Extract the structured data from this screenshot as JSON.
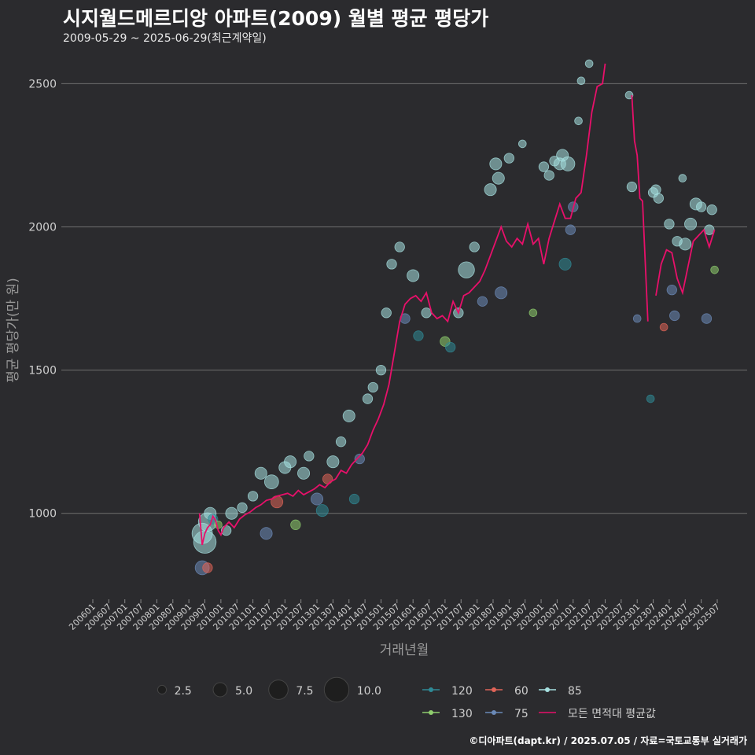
{
  "title": "시지월드메르디앙 아파트(2009) 월별 평균 평당가",
  "subtitle": "2009-05-29 ~ 2025-06-29(최근계약일)",
  "caption": "©디아파트(dapt.kr) / 2025.07.05 / 자료=국토교통부 실거래가",
  "chart_data": {
    "type": "scatter",
    "xlabel": "거래년월",
    "ylabel": "평균 평당가(만 원)",
    "ylim": [
      700,
      2600
    ],
    "yticks": [
      1000,
      1500,
      2000,
      2500
    ],
    "xlim_months": [
      "2006-01",
      "2025-07"
    ],
    "xticks": [
      "200601",
      "200607",
      "200701",
      "200707",
      "200801",
      "200807",
      "200901",
      "200907",
      "201001",
      "201007",
      "201101",
      "201107",
      "201201",
      "201207",
      "201301",
      "201307",
      "201401",
      "201407",
      "201501",
      "201507",
      "201601",
      "201607",
      "201701",
      "201707",
      "201801",
      "201807",
      "201901",
      "201907",
      "202001",
      "202007",
      "202101",
      "202107",
      "202201",
      "202207",
      "202301",
      "202307",
      "202401",
      "202407",
      "202501",
      "202507"
    ],
    "size_legend": [
      {
        "label": "2.5",
        "value": 2.5
      },
      {
        "label": "5.0",
        "value": 5.0
      },
      {
        "label": "7.5",
        "value": 7.5
      },
      {
        "label": "10.0",
        "value": 10.0
      }
    ],
    "series_legend": [
      {
        "name": "120",
        "color": "#2f8a96"
      },
      {
        "name": "60",
        "color": "#e06458"
      },
      {
        "name": "85",
        "color": "#a6e0e0"
      },
      {
        "name": "130",
        "color": "#8fce6e"
      },
      {
        "name": "75",
        "color": "#6b8ab8"
      },
      {
        "name": "모든 면적대 평균값",
        "color": "#e8106a"
      }
    ],
    "average_line": [
      {
        "x": "2009-05",
        "y": 1000
      },
      {
        "x": "2009-06",
        "y": 890
      },
      {
        "x": "2009-07",
        "y": 930
      },
      {
        "x": "2009-08",
        "y": 950
      },
      {
        "x": "2009-09",
        "y": 960
      },
      {
        "x": "2009-10",
        "y": 990
      },
      {
        "x": "2009-11",
        "y": 975
      },
      {
        "x": "2009-12",
        "y": 940
      },
      {
        "x": "2010-01",
        "y": 925
      },
      {
        "x": "2010-02",
        "y": 950
      },
      {
        "x": "2010-04",
        "y": 970
      },
      {
        "x": "2010-06",
        "y": 950
      },
      {
        "x": "2010-08",
        "y": 980
      },
      {
        "x": "2010-10",
        "y": 995
      },
      {
        "x": "2010-12",
        "y": 1005
      },
      {
        "x": "2011-02",
        "y": 1020
      },
      {
        "x": "2011-04",
        "y": 1030
      },
      {
        "x": "2011-06",
        "y": 1045
      },
      {
        "x": "2011-08",
        "y": 1050
      },
      {
        "x": "2011-10",
        "y": 1060
      },
      {
        "x": "2011-12",
        "y": 1065
      },
      {
        "x": "2012-02",
        "y": 1070
      },
      {
        "x": "2012-04",
        "y": 1060
      },
      {
        "x": "2012-06",
        "y": 1080
      },
      {
        "x": "2012-08",
        "y": 1065
      },
      {
        "x": "2012-10",
        "y": 1075
      },
      {
        "x": "2012-12",
        "y": 1085
      },
      {
        "x": "2013-02",
        "y": 1100
      },
      {
        "x": "2013-04",
        "y": 1090
      },
      {
        "x": "2013-06",
        "y": 1110
      },
      {
        "x": "2013-08",
        "y": 1120
      },
      {
        "x": "2013-10",
        "y": 1150
      },
      {
        "x": "2013-12",
        "y": 1140
      },
      {
        "x": "2014-02",
        "y": 1170
      },
      {
        "x": "2014-04",
        "y": 1190
      },
      {
        "x": "2014-06",
        "y": 1210
      },
      {
        "x": "2014-08",
        "y": 1240
      },
      {
        "x": "2014-10",
        "y": 1290
      },
      {
        "x": "2014-12",
        "y": 1330
      },
      {
        "x": "2015-02",
        "y": 1380
      },
      {
        "x": "2015-04",
        "y": 1450
      },
      {
        "x": "2015-06",
        "y": 1560
      },
      {
        "x": "2015-08",
        "y": 1670
      },
      {
        "x": "2015-10",
        "y": 1730
      },
      {
        "x": "2015-12",
        "y": 1750
      },
      {
        "x": "2016-02",
        "y": 1760
      },
      {
        "x": "2016-04",
        "y": 1740
      },
      {
        "x": "2016-06",
        "y": 1770
      },
      {
        "x": "2016-08",
        "y": 1700
      },
      {
        "x": "2016-10",
        "y": 1680
      },
      {
        "x": "2016-12",
        "y": 1690
      },
      {
        "x": "2017-02",
        "y": 1670
      },
      {
        "x": "2017-04",
        "y": 1740
      },
      {
        "x": "2017-06",
        "y": 1700
      },
      {
        "x": "2017-08",
        "y": 1760
      },
      {
        "x": "2017-10",
        "y": 1770
      },
      {
        "x": "2017-12",
        "y": 1790
      },
      {
        "x": "2018-02",
        "y": 1810
      },
      {
        "x": "2018-04",
        "y": 1850
      },
      {
        "x": "2018-06",
        "y": 1900
      },
      {
        "x": "2018-08",
        "y": 1950
      },
      {
        "x": "2018-10",
        "y": 2000
      },
      {
        "x": "2018-12",
        "y": 1950
      },
      {
        "x": "2019-02",
        "y": 1930
      },
      {
        "x": "2019-04",
        "y": 1960
      },
      {
        "x": "2019-06",
        "y": 1940
      },
      {
        "x": "2019-08",
        "y": 2010
      },
      {
        "x": "2019-10",
        "y": 1940
      },
      {
        "x": "2019-12",
        "y": 1960
      },
      {
        "x": "2020-02",
        "y": 1870
      },
      {
        "x": "2020-04",
        "y": 1960
      },
      {
        "x": "2020-06",
        "y": 2020
      },
      {
        "x": "2020-08",
        "y": 2080
      },
      {
        "x": "2020-10",
        "y": 2030
      },
      {
        "x": "2020-12",
        "y": 2030
      },
      {
        "x": "2021-02",
        "y": 2100
      },
      {
        "x": "2021-04",
        "y": 2120
      },
      {
        "x": "2021-06",
        "y": 2250
      },
      {
        "x": "2021-08",
        "y": 2400
      },
      {
        "x": "2021-10",
        "y": 2490
      },
      {
        "x": "2021-12",
        "y": 2500
      },
      {
        "x": "2022-01",
        "y": 2570
      },
      {
        "x": "2022-11",
        "y": null
      },
      {
        "x": "2022-11",
        "y": 2460
      },
      {
        "x": "2022-12",
        "y": 2300
      },
      {
        "x": "2023-01",
        "y": 2250
      },
      {
        "x": "2023-02",
        "y": 2100
      },
      {
        "x": "2023-03",
        "y": 2090
      },
      {
        "x": "2023-04",
        "y": 1880
      },
      {
        "x": "2023-05",
        "y": 1670
      },
      {
        "x": "2023-08",
        "y": null
      },
      {
        "x": "2023-08",
        "y": 1760
      },
      {
        "x": "2023-10",
        "y": 1870
      },
      {
        "x": "2023-12",
        "y": 1920
      },
      {
        "x": "2024-02",
        "y": 1910
      },
      {
        "x": "2024-04",
        "y": 1820
      },
      {
        "x": "2024-06",
        "y": 1770
      },
      {
        "x": "2024-08",
        "y": 1860
      },
      {
        "x": "2024-10",
        "y": 1950
      },
      {
        "x": "2024-12",
        "y": 1970
      },
      {
        "x": "2025-02",
        "y": 1990
      },
      {
        "x": "2025-04",
        "y": 1930
      },
      {
        "x": "2025-06",
        "y": 1990
      }
    ],
    "points": [
      {
        "x": "2009-06",
        "y": 930,
        "size": 8,
        "area": "85"
      },
      {
        "x": "2009-07",
        "y": 900,
        "size": 9,
        "area": "85"
      },
      {
        "x": "2009-08",
        "y": 970,
        "size": 7,
        "area": "85"
      },
      {
        "x": "2009-06",
        "y": 810,
        "size": 5,
        "area": "75"
      },
      {
        "x": "2009-08",
        "y": 810,
        "size": 3,
        "area": "60"
      },
      {
        "x": "2009-09",
        "y": 1000,
        "size": 4,
        "area": "85"
      },
      {
        "x": "2009-10",
        "y": 980,
        "size": 3,
        "area": "120"
      },
      {
        "x": "2009-12",
        "y": 960,
        "size": 2,
        "area": "130"
      },
      {
        "x": "2010-03",
        "y": 940,
        "size": 3,
        "area": "85"
      },
      {
        "x": "2010-05",
        "y": 1000,
        "size": 4,
        "area": "85"
      },
      {
        "x": "2010-09",
        "y": 1020,
        "size": 3,
        "area": "85"
      },
      {
        "x": "2011-01",
        "y": 1060,
        "size": 3,
        "area": "85"
      },
      {
        "x": "2011-04",
        "y": 1140,
        "size": 4,
        "area": "85"
      },
      {
        "x": "2011-06",
        "y": 930,
        "size": 4,
        "area": "75"
      },
      {
        "x": "2011-08",
        "y": 1110,
        "size": 5,
        "area": "85"
      },
      {
        "x": "2011-10",
        "y": 1040,
        "size": 4,
        "area": "60"
      },
      {
        "x": "2012-01",
        "y": 1160,
        "size": 4,
        "area": "85"
      },
      {
        "x": "2012-03",
        "y": 1180,
        "size": 4,
        "area": "85"
      },
      {
        "x": "2012-05",
        "y": 960,
        "size": 3,
        "area": "130"
      },
      {
        "x": "2012-08",
        "y": 1140,
        "size": 4,
        "area": "85"
      },
      {
        "x": "2012-10",
        "y": 1200,
        "size": 3,
        "area": "85"
      },
      {
        "x": "2013-01",
        "y": 1050,
        "size": 4,
        "area": "75"
      },
      {
        "x": "2013-03",
        "y": 1010,
        "size": 4,
        "area": "120"
      },
      {
        "x": "2013-05",
        "y": 1120,
        "size": 3,
        "area": "60"
      },
      {
        "x": "2013-07",
        "y": 1180,
        "size": 4,
        "area": "85"
      },
      {
        "x": "2013-10",
        "y": 1250,
        "size": 3,
        "area": "85"
      },
      {
        "x": "2014-01",
        "y": 1340,
        "size": 4,
        "area": "85"
      },
      {
        "x": "2014-03",
        "y": 1050,
        "size": 3,
        "area": "120"
      },
      {
        "x": "2014-05",
        "y": 1190,
        "size": 3,
        "area": "75"
      },
      {
        "x": "2014-08",
        "y": 1400,
        "size": 3,
        "area": "85"
      },
      {
        "x": "2014-10",
        "y": 1440,
        "size": 3,
        "area": "85"
      },
      {
        "x": "2015-01",
        "y": 1500,
        "size": 3,
        "area": "85"
      },
      {
        "x": "2015-03",
        "y": 1700,
        "size": 3,
        "area": "85"
      },
      {
        "x": "2015-05",
        "y": 1870,
        "size": 3,
        "area": "85"
      },
      {
        "x": "2015-08",
        "y": 1930,
        "size": 3,
        "area": "85"
      },
      {
        "x": "2015-10",
        "y": 1680,
        "size": 3,
        "area": "75"
      },
      {
        "x": "2016-01",
        "y": 1830,
        "size": 4,
        "area": "85"
      },
      {
        "x": "2016-03",
        "y": 1620,
        "size": 3,
        "area": "120"
      },
      {
        "x": "2016-06",
        "y": 1700,
        "size": 3,
        "area": "85"
      },
      {
        "x": "2017-01",
        "y": 1600,
        "size": 3,
        "area": "130"
      },
      {
        "x": "2017-03",
        "y": 1580,
        "size": 3,
        "area": "120"
      },
      {
        "x": "2017-06",
        "y": 1700,
        "size": 3,
        "area": "85"
      },
      {
        "x": "2017-09",
        "y": 1850,
        "size": 6,
        "area": "85"
      },
      {
        "x": "2017-12",
        "y": 1930,
        "size": 3,
        "area": "85"
      },
      {
        "x": "2018-03",
        "y": 1740,
        "size": 3,
        "area": "75"
      },
      {
        "x": "2018-06",
        "y": 2130,
        "size": 4,
        "area": "85"
      },
      {
        "x": "2018-08",
        "y": 2220,
        "size": 4,
        "area": "85"
      },
      {
        "x": "2018-09",
        "y": 2170,
        "size": 4,
        "area": "85"
      },
      {
        "x": "2018-10",
        "y": 1770,
        "size": 4,
        "area": "75"
      },
      {
        "x": "2019-01",
        "y": 2240,
        "size": 3,
        "area": "85"
      },
      {
        "x": "2019-06",
        "y": 2290,
        "size": 2,
        "area": "85"
      },
      {
        "x": "2019-10",
        "y": 1700,
        "size": 2,
        "area": "130"
      },
      {
        "x": "2020-02",
        "y": 2210,
        "size": 3,
        "area": "85"
      },
      {
        "x": "2020-04",
        "y": 2180,
        "size": 3,
        "area": "85"
      },
      {
        "x": "2020-06",
        "y": 2230,
        "size": 3,
        "area": "85"
      },
      {
        "x": "2020-08",
        "y": 2220,
        "size": 4,
        "area": "85"
      },
      {
        "x": "2020-09",
        "y": 2250,
        "size": 4,
        "area": "85"
      },
      {
        "x": "2020-10",
        "y": 1870,
        "size": 4,
        "area": "120"
      },
      {
        "x": "2020-11",
        "y": 2220,
        "size": 5,
        "area": "85"
      },
      {
        "x": "2020-12",
        "y": 1990,
        "size": 3,
        "area": "75"
      },
      {
        "x": "2021-01",
        "y": 2070,
        "size": 3,
        "area": "75"
      },
      {
        "x": "2021-03",
        "y": 2370,
        "size": 2,
        "area": "85"
      },
      {
        "x": "2021-04",
        "y": 2510,
        "size": 2,
        "area": "85"
      },
      {
        "x": "2021-07",
        "y": 2570,
        "size": 2,
        "area": "85"
      },
      {
        "x": "2022-10",
        "y": 2460,
        "size": 2,
        "area": "85"
      },
      {
        "x": "2022-11",
        "y": 2140,
        "size": 3,
        "area": "85"
      },
      {
        "x": "2023-01",
        "y": 1680,
        "size": 2,
        "area": "75"
      },
      {
        "x": "2023-06",
        "y": 1400,
        "size": 2,
        "area": "120"
      },
      {
        "x": "2023-07",
        "y": 2120,
        "size": 3,
        "area": "85"
      },
      {
        "x": "2023-08",
        "y": 2130,
        "size": 3,
        "area": "85"
      },
      {
        "x": "2023-09",
        "y": 2100,
        "size": 3,
        "area": "85"
      },
      {
        "x": "2023-11",
        "y": 1650,
        "size": 2,
        "area": "60"
      },
      {
        "x": "2024-01",
        "y": 2010,
        "size": 3,
        "area": "85"
      },
      {
        "x": "2024-02",
        "y": 1780,
        "size": 3,
        "area": "75"
      },
      {
        "x": "2024-03",
        "y": 1690,
        "size": 3,
        "area": "75"
      },
      {
        "x": "2024-04",
        "y": 1950,
        "size": 3,
        "area": "85"
      },
      {
        "x": "2024-06",
        "y": 2170,
        "size": 2,
        "area": "85"
      },
      {
        "x": "2024-07",
        "y": 1940,
        "size": 4,
        "area": "85"
      },
      {
        "x": "2024-09",
        "y": 2010,
        "size": 4,
        "area": "85"
      },
      {
        "x": "2024-11",
        "y": 2080,
        "size": 4,
        "area": "85"
      },
      {
        "x": "2025-01",
        "y": 2070,
        "size": 3,
        "area": "85"
      },
      {
        "x": "2025-03",
        "y": 1680,
        "size": 3,
        "area": "75"
      },
      {
        "x": "2025-04",
        "y": 1990,
        "size": 3,
        "area": "85"
      },
      {
        "x": "2025-05",
        "y": 2060,
        "size": 3,
        "area": "85"
      },
      {
        "x": "2025-06",
        "y": 1850,
        "size": 2,
        "area": "130"
      }
    ]
  }
}
